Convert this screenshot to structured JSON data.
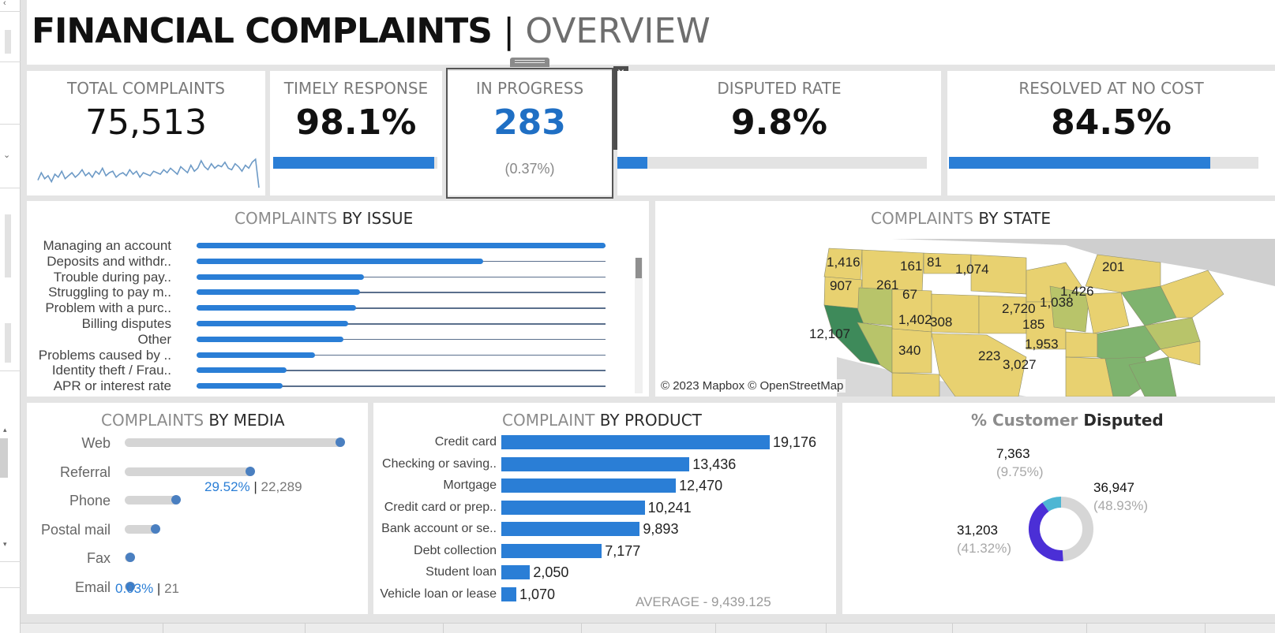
{
  "header": {
    "title": "FINANCIAL COMPLAINTS",
    "separator": "|",
    "subtitle": "OVERVIEW"
  },
  "kpis": {
    "total": {
      "label": "TOTAL COMPLAINTS",
      "value": "75,513",
      "trend": [
        0.3,
        0.55,
        0.35,
        0.45,
        0.25,
        0.5,
        0.4,
        0.6,
        0.35,
        0.45,
        0.55,
        0.4,
        0.5,
        0.65,
        0.45,
        0.55,
        0.4,
        0.6,
        0.5,
        0.7,
        0.45,
        0.55,
        0.6,
        0.4,
        0.5,
        0.55,
        0.45,
        0.65,
        0.5,
        0.6,
        0.4,
        0.55,
        0.5,
        0.45,
        0.6,
        0.55,
        0.5,
        0.65,
        0.55,
        0.7,
        0.6,
        0.5,
        0.75,
        0.65,
        0.55,
        0.8,
        0.6,
        0.7,
        0.95,
        0.75,
        0.65,
        0.85,
        0.7,
        0.8,
        0.75,
        0.9,
        0.7,
        0.65,
        0.85,
        0.75,
        0.6,
        0.8,
        0.7,
        0.9,
        1.0,
        0.05
      ]
    },
    "timely": {
      "label": "TIMELY RESPONSE",
      "value": "98.1%",
      "fraction": 0.981
    },
    "progress": {
      "label": "IN PROGRESS",
      "value": "283",
      "sub": "(0.37%)"
    },
    "disputed": {
      "label": "DISPUTED RATE",
      "value": "9.8%",
      "fraction": 0.098
    },
    "resolved": {
      "label": "RESOLVED AT NO COST",
      "value": "84.5%",
      "fraction": 0.845
    }
  },
  "toolbar": {
    "close": "✕",
    "open": "⇱",
    "filter": "▼",
    "pin": "⚲",
    "more": "▾"
  },
  "issue_title": {
    "a": "COMPLAINTS",
    "b": " BY ISSUE"
  },
  "state_title": {
    "a": "COMPLAINTS",
    "b": " BY STATE"
  },
  "media_title": {
    "a": "COMPLAINTS",
    "b": " BY MEDIA"
  },
  "product_title": {
    "a": "COMPLAINT",
    "b": " BY PRODUCT"
  },
  "disputed_title": {
    "a": "% Customer",
    "b": " Disputed"
  },
  "map": {
    "credit": "© 2023 Mapbox © OpenStreetMap",
    "labels": [
      "1,416",
      "161",
      "81",
      "1,074",
      "907",
      "261",
      "67",
      "201",
      "1,426",
      "2,720",
      "1,038",
      "12,107",
      "1,402",
      "308",
      "185",
      "1,953",
      "340",
      "223",
      "3,027"
    ],
    "colors": {
      "low": "#e8d170",
      "mid": "#b8c46a",
      "high": "#7fb36e",
      "top": "#3e8a5a",
      "land": "#cfcfcf",
      "water": "#ffffff"
    }
  },
  "chart_data": [
    {
      "type": "bar",
      "orientation": "horizontal",
      "categories": [
        "Managing an account",
        "Deposits and withdr..",
        "Trouble during pay..",
        "Struggling to pay m..",
        "Problem with a purc..",
        "Billing disputes",
        "Other",
        "Problems caused by ..",
        "Identity theft / Frau..",
        "APR or interest rate"
      ],
      "values": [
        1.0,
        0.7,
        0.41,
        0.4,
        0.39,
        0.37,
        0.36,
        0.29,
        0.22,
        0.21
      ],
      "title": "COMPLAINTS BY ISSUE"
    },
    {
      "type": "bar",
      "orientation": "horizontal",
      "categories": [
        "Web",
        "Referral",
        "Phone",
        "Postal mail",
        "Fax",
        "Email"
      ],
      "values": [
        1.0,
        0.59,
        0.25,
        0.16,
        0.04,
        0.02
      ],
      "annotations": [
        {
          "category": "Referral",
          "pct": "29.52%",
          "sep": " | ",
          "count": "22,289"
        },
        {
          "category": "Email",
          "pct": "0.03%",
          "sep": " | ",
          "count": "21"
        }
      ],
      "title": "COMPLAINTS BY MEDIA"
    },
    {
      "type": "bar",
      "orientation": "horizontal",
      "categories": [
        "Credit card",
        "Checking or saving..",
        "Mortgage",
        "Credit card or prep..",
        "Bank account or se..",
        "Debt collection",
        "Student loan",
        "Vehicle loan or lease"
      ],
      "values": [
        19176,
        13436,
        12470,
        10241,
        9893,
        7177,
        2050,
        1070
      ],
      "value_labels": [
        "19,176",
        "13,436",
        "12,470",
        "10,241",
        "9,893",
        "7,177",
        "2,050",
        "1,070"
      ],
      "reference": {
        "label": "AVERAGE - 9,439.125",
        "value": 9439.125
      },
      "title": "COMPLAINT BY PRODUCT"
    },
    {
      "type": "pie",
      "variant": "donut",
      "title": "% Customer Disputed",
      "slices": [
        {
          "value": 36947,
          "label": "36,947",
          "pct": "(48.93%)",
          "color": "#d6d6d6"
        },
        {
          "value": 31203,
          "label": "31,203",
          "pct": "(41.32%)",
          "color": "#4b2fd6"
        },
        {
          "value": 7363,
          "label": "7,363",
          "pct": "(9.75%)",
          "color": "#4db6d3"
        }
      ]
    }
  ]
}
